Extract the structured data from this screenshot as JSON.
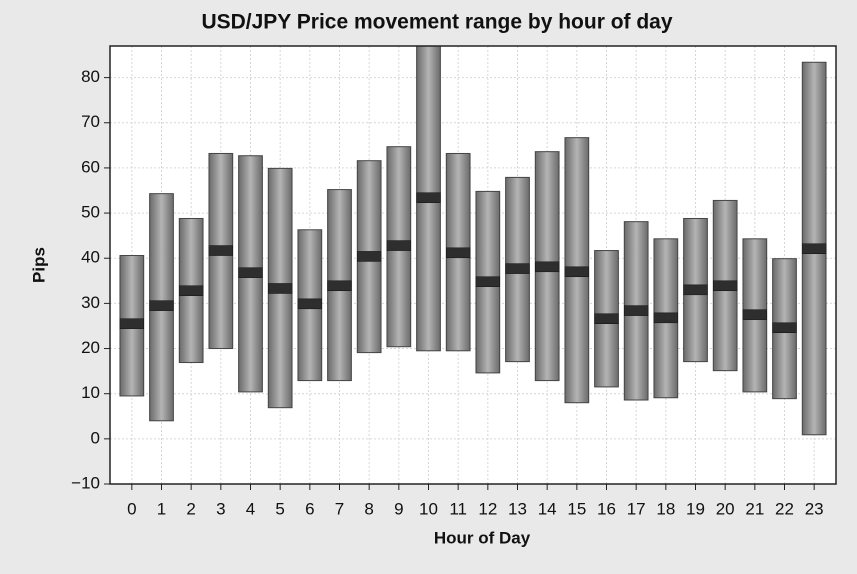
{
  "chart_data": {
    "type": "range_bar",
    "title": "USD/JPY Price movement range by hour of day",
    "xlabel": "Hour of Day",
    "ylabel": "Pips",
    "categories": [
      "0",
      "1",
      "2",
      "3",
      "4",
      "5",
      "6",
      "7",
      "8",
      "9",
      "10",
      "11",
      "12",
      "13",
      "14",
      "15",
      "16",
      "17",
      "18",
      "19",
      "20",
      "21",
      "22",
      "23"
    ],
    "low": [
      9.5,
      4,
      16.9,
      20,
      10.4,
      6.9,
      12.9,
      12.9,
      19.1,
      20.4,
      19.5,
      19.5,
      14.6,
      17.1,
      12.9,
      8,
      11.5,
      8.6,
      9.1,
      17.1,
      15.1,
      10.4,
      8.9,
      0.9
    ],
    "high": [
      40.6,
      54.3,
      48.8,
      63.2,
      62.7,
      59.9,
      46.3,
      55.2,
      61.6,
      64.7,
      87,
      63.2,
      54.8,
      57.9,
      63.6,
      66.7,
      41.7,
      48.1,
      44.3,
      48.8,
      52.8,
      44.3,
      39.9,
      83.4
    ],
    "mid": [
      25.5,
      29.5,
      32.8,
      41.7,
      36.8,
      33.3,
      29.9,
      33.9,
      40.4,
      42.8,
      53.4,
      41.2,
      34.8,
      37.7,
      38.1,
      37,
      26.6,
      28.4,
      26.8,
      33,
      33.9,
      27.5,
      24.6,
      42.1
    ],
    "color": "#8a8a8a",
    "marker_color": "#2e2e2e",
    "ylim": [
      -10,
      87
    ],
    "yticks": [
      {
        "value": -10,
        "label": "−10"
      },
      0,
      10,
      20,
      30,
      40,
      50,
      60,
      70,
      80
    ],
    "grid": true
  }
}
